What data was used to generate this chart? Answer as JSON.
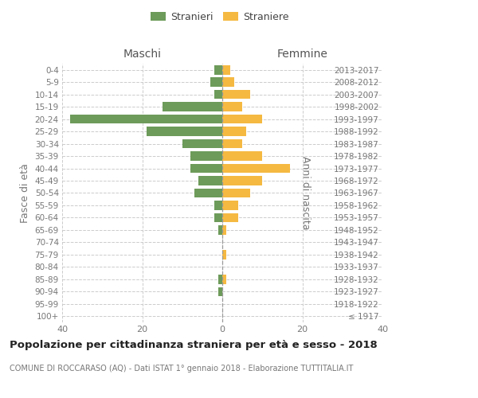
{
  "age_groups": [
    "100+",
    "95-99",
    "90-94",
    "85-89",
    "80-84",
    "75-79",
    "70-74",
    "65-69",
    "60-64",
    "55-59",
    "50-54",
    "45-49",
    "40-44",
    "35-39",
    "30-34",
    "25-29",
    "20-24",
    "15-19",
    "10-14",
    "5-9",
    "0-4"
  ],
  "birth_years": [
    "≤ 1917",
    "1918-1922",
    "1923-1927",
    "1928-1932",
    "1933-1937",
    "1938-1942",
    "1943-1947",
    "1948-1952",
    "1953-1957",
    "1958-1962",
    "1963-1967",
    "1968-1972",
    "1973-1977",
    "1978-1982",
    "1983-1987",
    "1988-1992",
    "1993-1997",
    "1998-2002",
    "2003-2007",
    "2008-2012",
    "2013-2017"
  ],
  "maschi": [
    0,
    0,
    1,
    1,
    0,
    0,
    0,
    1,
    2,
    2,
    7,
    6,
    8,
    8,
    10,
    19,
    38,
    15,
    2,
    3,
    2
  ],
  "femmine": [
    0,
    0,
    0,
    1,
    0,
    1,
    0,
    1,
    4,
    4,
    7,
    10,
    17,
    10,
    5,
    6,
    10,
    5,
    7,
    3,
    2
  ],
  "color_maschi": "#6d9b5a",
  "color_femmine": "#f5b942",
  "title": "Popolazione per cittadinanza straniera per età e sesso - 2018",
  "subtitle": "COMUNE DI ROCCARASO (AQ) - Dati ISTAT 1° gennaio 2018 - Elaborazione TUTTITALIA.IT",
  "xlabel_maschi": "Maschi",
  "xlabel_femmine": "Femmine",
  "ylabel_left": "Fasce di età",
  "ylabel_right": "Anni di nascita",
  "legend_maschi": "Stranieri",
  "legend_femmine": "Straniere",
  "xlim": 40,
  "background_color": "#ffffff",
  "grid_color": "#cccccc"
}
